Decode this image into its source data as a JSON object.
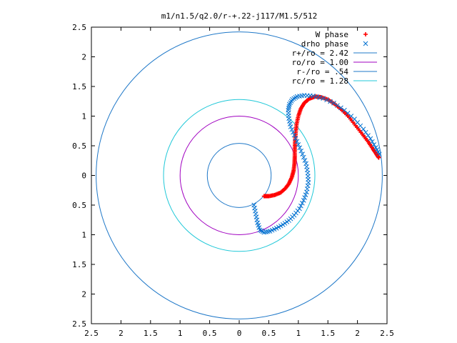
{
  "chart_data": {
    "type": "scatter",
    "title": "m1/n1.5/q2.0/r-+.22-j117/M1.5/512",
    "xlabel": "",
    "ylabel": "",
    "xlim": [
      -2.5,
      2.5
    ],
    "ylim": [
      -2.5,
      2.5
    ],
    "x_ticks": [
      -2.5,
      -2,
      -1.5,
      -1,
      -0.5,
      0,
      0.5,
      1,
      1.5,
      2,
      2.5
    ],
    "y_ticks": [
      -2.5,
      -2,
      -1.5,
      -1,
      -0.5,
      0,
      0.5,
      1,
      1.5,
      2,
      2.5
    ],
    "x_tick_labels": [
      "2.5",
      "2",
      "1.5",
      "1",
      "0.5",
      "0",
      "0.5",
      "1",
      "1.5",
      "2",
      "2.5"
    ],
    "y_tick_labels": [
      "2.5",
      "2",
      "1.5",
      "1",
      "0.5",
      "0",
      "0.5",
      "1",
      "1.5",
      "2",
      "2.5"
    ],
    "grid": false,
    "legend_position": "top-right",
    "series": [
      {
        "name": "W phase",
        "marker": "+",
        "color": "#ff0000",
        "points": [
          [
            0.42,
            -0.35
          ],
          [
            0.5,
            -0.35
          ],
          [
            0.6,
            -0.33
          ],
          [
            0.7,
            -0.29
          ],
          [
            0.78,
            -0.22
          ],
          [
            0.84,
            -0.14
          ],
          [
            0.89,
            -0.03
          ],
          [
            0.92,
            0.08
          ],
          [
            0.935,
            0.2
          ],
          [
            0.94,
            0.32
          ],
          [
            0.94,
            0.45
          ],
          [
            0.945,
            0.58
          ],
          [
            0.955,
            0.72
          ],
          [
            0.97,
            0.86
          ],
          [
            1.0,
            1.0
          ],
          [
            1.04,
            1.12
          ],
          [
            1.1,
            1.22
          ],
          [
            1.18,
            1.29
          ],
          [
            1.28,
            1.33
          ],
          [
            1.38,
            1.32
          ],
          [
            1.5,
            1.28
          ],
          [
            1.62,
            1.2
          ],
          [
            1.74,
            1.1
          ],
          [
            1.86,
            0.98
          ],
          [
            1.97,
            0.84
          ],
          [
            2.08,
            0.7
          ],
          [
            2.18,
            0.57
          ],
          [
            2.26,
            0.45
          ],
          [
            2.32,
            0.36
          ],
          [
            2.36,
            0.3
          ]
        ]
      },
      {
        "name": "drho phase",
        "marker": "x",
        "color": "#0070d0",
        "points": [
          [
            0.25,
            -0.5
          ],
          [
            0.28,
            -0.65
          ],
          [
            0.31,
            -0.8
          ],
          [
            0.35,
            -0.92
          ],
          [
            0.42,
            -0.96
          ],
          [
            0.52,
            -0.94
          ],
          [
            0.63,
            -0.89
          ],
          [
            0.74,
            -0.83
          ],
          [
            0.84,
            -0.76
          ],
          [
            0.93,
            -0.67
          ],
          [
            1.02,
            -0.56
          ],
          [
            1.09,
            -0.42
          ],
          [
            1.14,
            -0.28
          ],
          [
            1.17,
            -0.12
          ],
          [
            1.16,
            0.04
          ],
          [
            1.13,
            0.2
          ],
          [
            1.07,
            0.36
          ],
          [
            1.0,
            0.52
          ],
          [
            0.93,
            0.68
          ],
          [
            0.87,
            0.82
          ],
          [
            0.84,
            0.96
          ],
          [
            0.83,
            1.1
          ],
          [
            0.85,
            1.2
          ],
          [
            0.9,
            1.28
          ],
          [
            0.98,
            1.33
          ],
          [
            1.1,
            1.35
          ],
          [
            1.25,
            1.34
          ],
          [
            1.42,
            1.3
          ],
          [
            1.6,
            1.22
          ],
          [
            1.78,
            1.1
          ],
          [
            1.95,
            0.95
          ],
          [
            2.1,
            0.78
          ],
          [
            2.22,
            0.62
          ],
          [
            2.31,
            0.47
          ],
          [
            2.37,
            0.36
          ]
        ]
      },
      {
        "name": "r+/ro = 2.42",
        "kind": "circle",
        "radius": 2.42,
        "color": "#1f78c8"
      },
      {
        "name": "ro/ro = 1.00",
        "kind": "circle",
        "radius": 1.0,
        "color": "#a000c0"
      },
      {
        "name": "r-/ro = .54",
        "kind": "circle",
        "radius": 0.54,
        "color": "#1f78c8"
      },
      {
        "name": "rc/ro = 1.28",
        "kind": "circle",
        "radius": 1.28,
        "color": "#20c8d8"
      }
    ]
  }
}
